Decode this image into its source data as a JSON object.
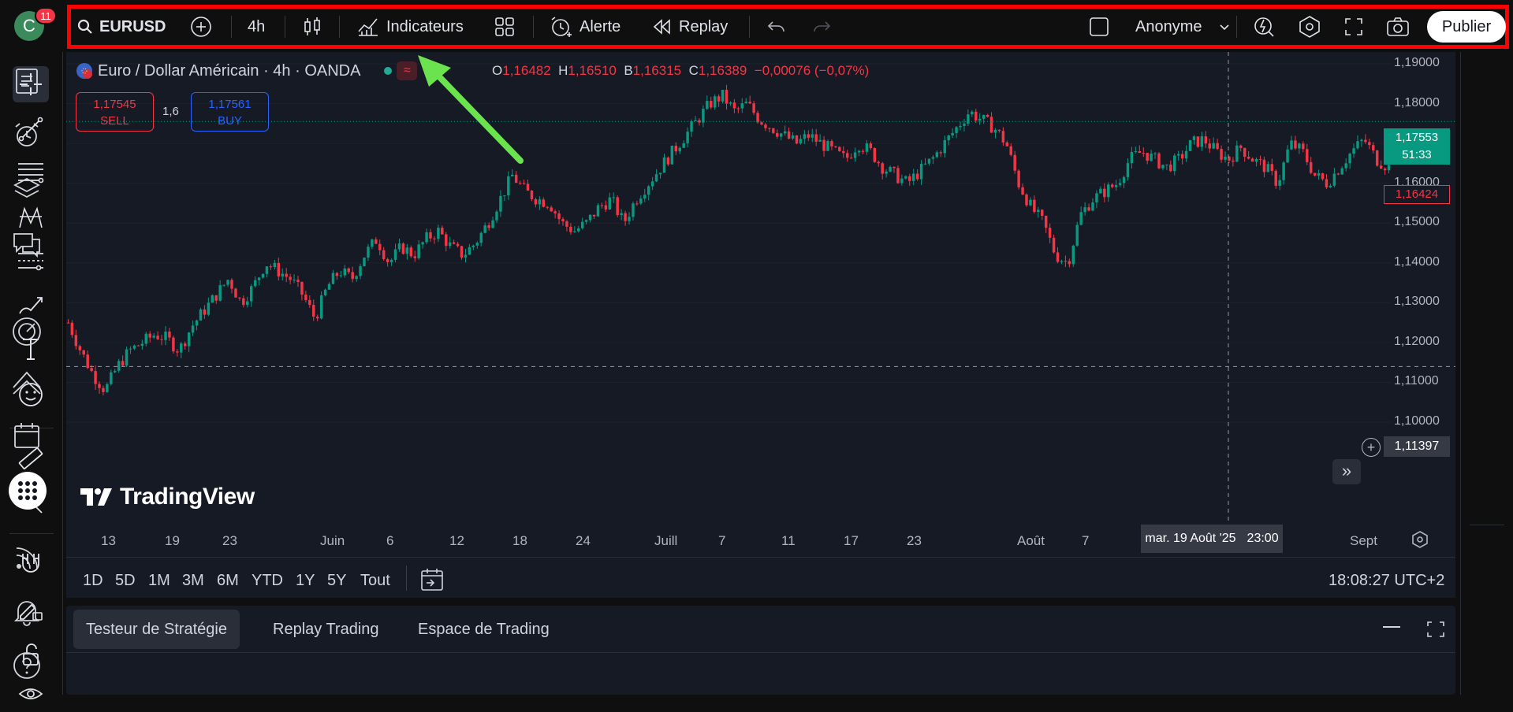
{
  "header": {
    "notification_count": "11",
    "avatar_letter": "C",
    "symbol": "EURUSD",
    "interval": "4h",
    "indicators_label": "Indicateurs",
    "alert_label": "Alerte",
    "replay_label": "Replay",
    "layout_name": "Anonyme",
    "publish_label": "Publier"
  },
  "chart": {
    "title": "Euro / Dollar Américain · 4h · OANDA",
    "ohlc": {
      "o_label": "O",
      "o": "1,16482",
      "h_label": "H",
      "h": "1,16510",
      "b_label": "B",
      "b": "1,16315",
      "c_label": "C",
      "c": "1,16389",
      "change": "−0,00076 (−0,07%)"
    },
    "sell_price": "1,17545",
    "sell_label": "SELL",
    "buy_price": "1,17561",
    "buy_label": "BUY",
    "spread": "1,6",
    "last_price": "1,17553",
    "countdown": "51:33",
    "low_price": "1,16424",
    "crosshair_price": "1,11397",
    "crosshair_date": "mar. 19 Août '25",
    "crosshair_time": "23:00",
    "logo_text": "TradingView",
    "colors": {
      "up": "#089981",
      "down": "#f23645",
      "bg": "#161a25",
      "accent": "#2962ff"
    }
  },
  "chart_data": {
    "type": "candlestick",
    "ylabel": "",
    "ylim": [
      1.1,
      1.19
    ],
    "yticks": [
      "1,19000",
      "1,18000",
      "1,17000",
      "1,16000",
      "1,15000",
      "1,14000",
      "1,13000",
      "1,12000",
      "1,11000",
      "1,10000"
    ],
    "xticks": [
      "13",
      "19",
      "23",
      "Juin",
      "6",
      "12",
      "18",
      "24",
      "Juill",
      "7",
      "11",
      "17",
      "23",
      "Août",
      "7",
      "Sept"
    ],
    "close_path": [
      1.125,
      1.118,
      1.112,
      1.108,
      1.114,
      1.118,
      1.12,
      1.122,
      1.121,
      1.118,
      1.124,
      1.128,
      1.132,
      1.136,
      1.13,
      1.134,
      1.14,
      1.138,
      1.136,
      1.132,
      1.126,
      1.134,
      1.138,
      1.136,
      1.142,
      1.146,
      1.14,
      1.144,
      1.142,
      1.146,
      1.148,
      1.144,
      1.142,
      1.145,
      1.15,
      1.156,
      1.162,
      1.158,
      1.156,
      1.155,
      1.15,
      1.148,
      1.15,
      1.154,
      1.156,
      1.15,
      1.156,
      1.16,
      1.164,
      1.168,
      1.172,
      1.176,
      1.18,
      1.182,
      1.178,
      1.18,
      1.176,
      1.174,
      1.172,
      1.17,
      1.172,
      1.17,
      1.168,
      1.166,
      1.17,
      1.168,
      1.164,
      1.162,
      1.16,
      1.163,
      1.166,
      1.17,
      1.174,
      1.178,
      1.176,
      1.174,
      1.17,
      1.16,
      1.154,
      1.15,
      1.142,
      1.14,
      1.152,
      1.156,
      1.158,
      1.16,
      1.166,
      1.168,
      1.166,
      1.164,
      1.166,
      1.17,
      1.171,
      1.168,
      1.166,
      1.169,
      1.166,
      1.164,
      1.16,
      1.17,
      1.168,
      1.162,
      1.16,
      1.164,
      1.168,
      1.171,
      1.166,
      1.164
    ]
  },
  "range_bar": {
    "ranges": [
      "1D",
      "5D",
      "1M",
      "3M",
      "6M",
      "YTD",
      "1Y",
      "5Y",
      "Tout"
    ],
    "clock": "18:08:27 UTC+2"
  },
  "bottom_panel": {
    "tabs": [
      "Testeur de Stratégie",
      "Replay Trading",
      "Espace de Trading"
    ]
  }
}
